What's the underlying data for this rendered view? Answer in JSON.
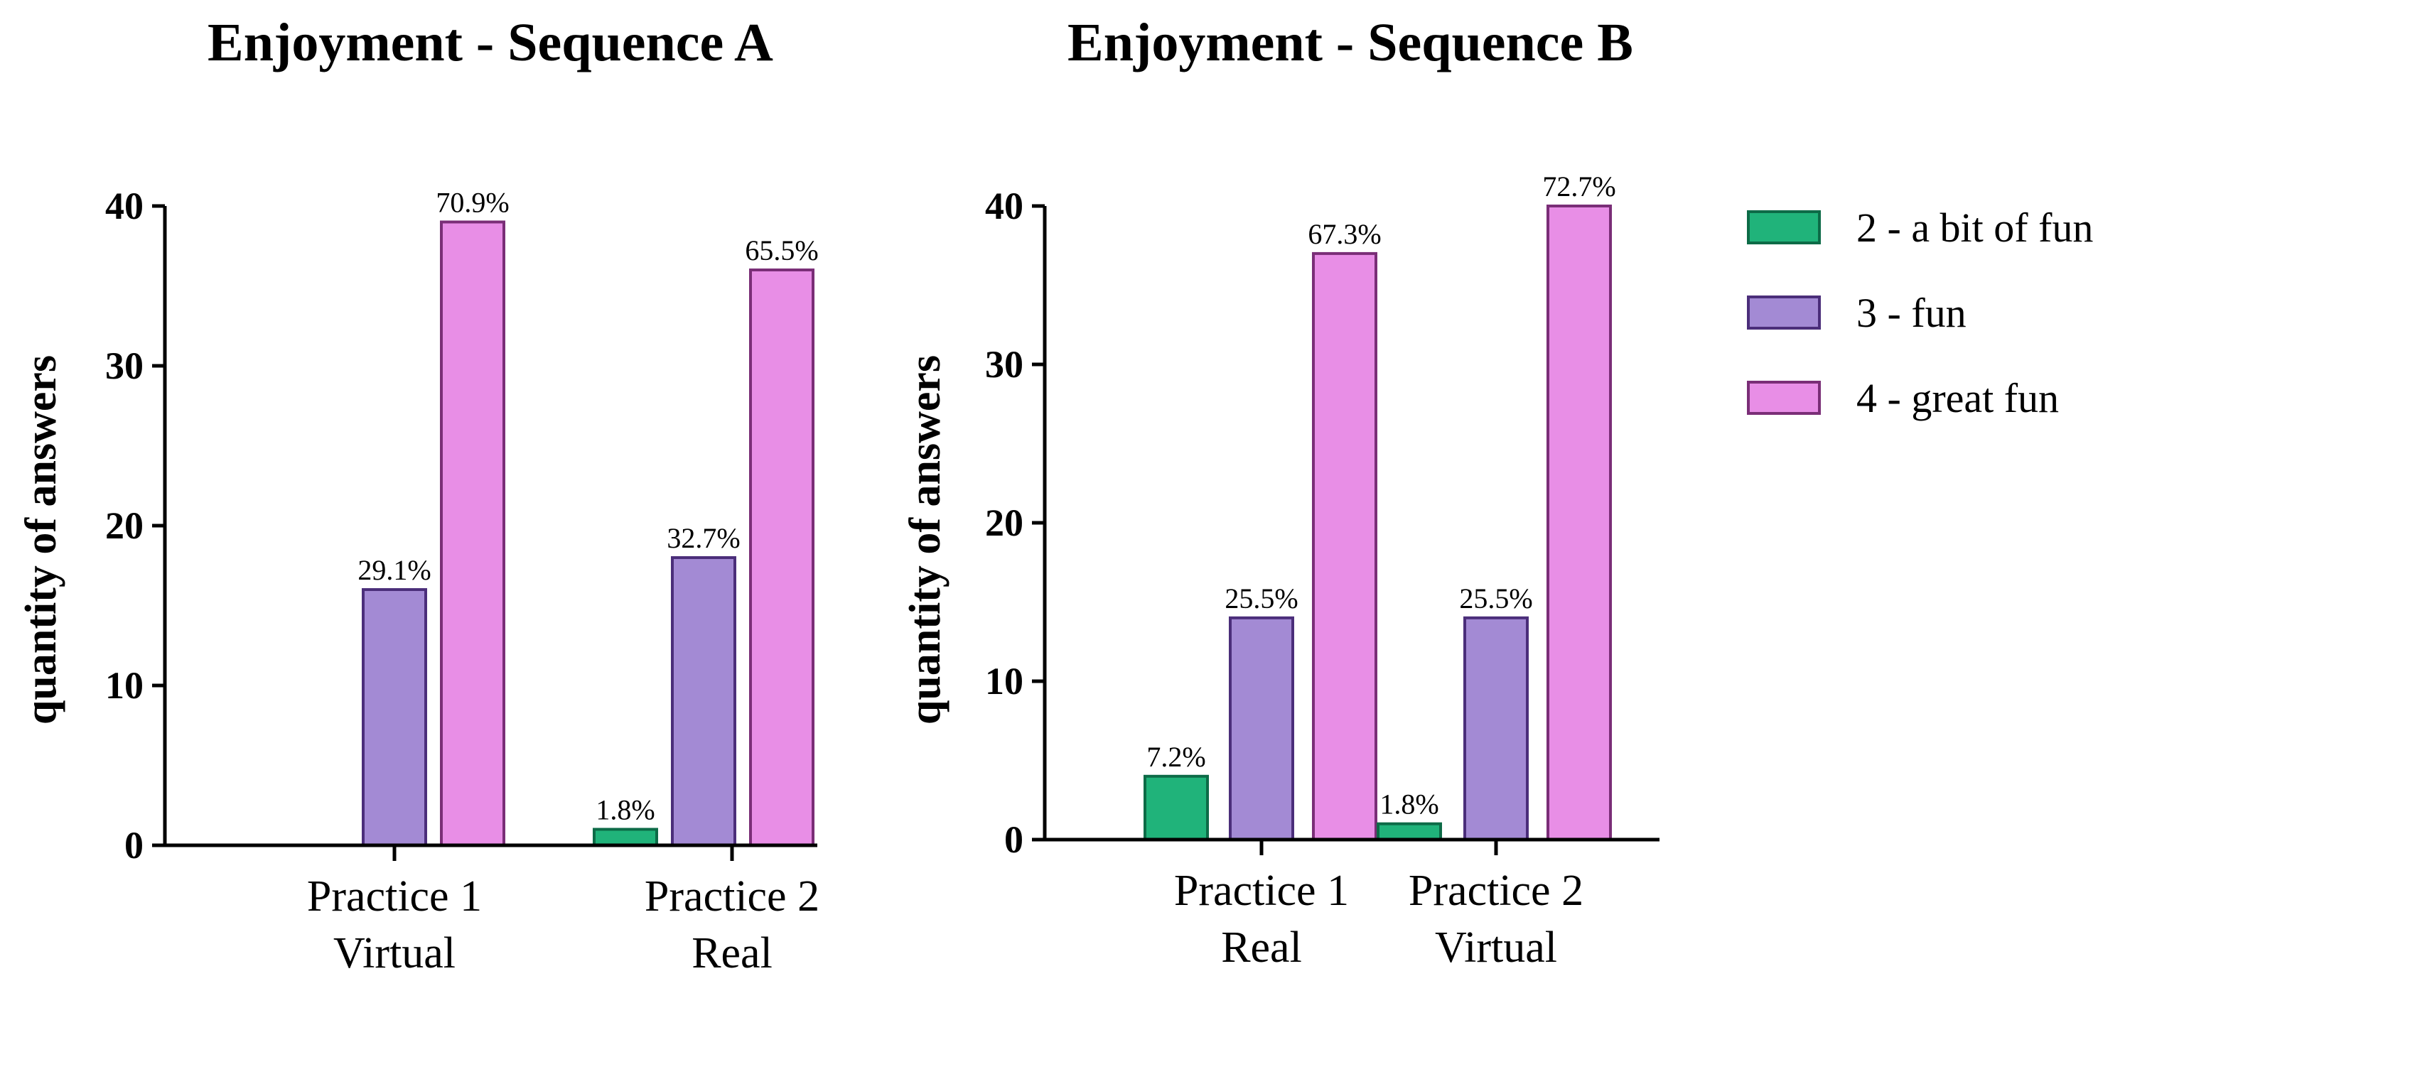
{
  "chart_data": [
    {
      "type": "bar",
      "title": "Enjoyment - Sequence A",
      "xlabel": "",
      "ylabel": "quantity of answers",
      "ylim": [
        0,
        40
      ],
      "yticks": [
        "0",
        "10",
        "20",
        "30",
        "40"
      ],
      "categories": [
        {
          "line1": "Practice 1",
          "line2": "Virtual"
        },
        {
          "line1": "Practice 2",
          "line2": "Real"
        }
      ],
      "series": [
        {
          "name": "2 - a bit of fun",
          "color": "#20b37a",
          "values": [
            0,
            1
          ],
          "labels": [
            "",
            "1.8%"
          ]
        },
        {
          "name": "3 - fun",
          "color": "#a38ad4",
          "values": [
            16,
            18
          ],
          "labels": [
            "29.1%",
            "32.7%"
          ]
        },
        {
          "name": "4 - great fun",
          "color": "#e88ee6",
          "values": [
            39,
            36
          ],
          "labels": [
            "70.9%",
            "65.5%"
          ]
        }
      ]
    },
    {
      "type": "bar",
      "title": "Enjoyment - Sequence B",
      "xlabel": "",
      "ylabel": "quantity of answers",
      "ylim": [
        0,
        40
      ],
      "yticks": [
        "0",
        "10",
        "20",
        "30",
        "40"
      ],
      "categories": [
        {
          "line1": "Practice 1",
          "line2": "Real"
        },
        {
          "line1": "Practice 2",
          "line2": "Virtual"
        }
      ],
      "series": [
        {
          "name": "2 - a bit of fun",
          "color": "#20b37a",
          "values": [
            4,
            1
          ],
          "labels": [
            "7.2%",
            "1.8%"
          ]
        },
        {
          "name": "3 - fun",
          "color": "#a38ad4",
          "values": [
            14,
            14
          ],
          "labels": [
            "25.5%",
            "25.5%"
          ]
        },
        {
          "name": "4 - great fun",
          "color": "#e88ee6",
          "values": [
            37,
            40
          ],
          "labels": [
            "67.3%",
            "72.7%"
          ]
        }
      ]
    }
  ],
  "legend": {
    "placement": "right",
    "items": [
      {
        "label": "2 - a bit of fun",
        "color": "#20b37a"
      },
      {
        "label": "3 - fun",
        "color": "#a38ad4"
      },
      {
        "label": "4 - great fun",
        "color": "#e88ee6"
      }
    ]
  },
  "colors": {
    "stroke_green": "#0d6b47",
    "stroke_purple": "#4b2e7a",
    "stroke_pink": "#7a2e77",
    "axis": "#000000"
  }
}
